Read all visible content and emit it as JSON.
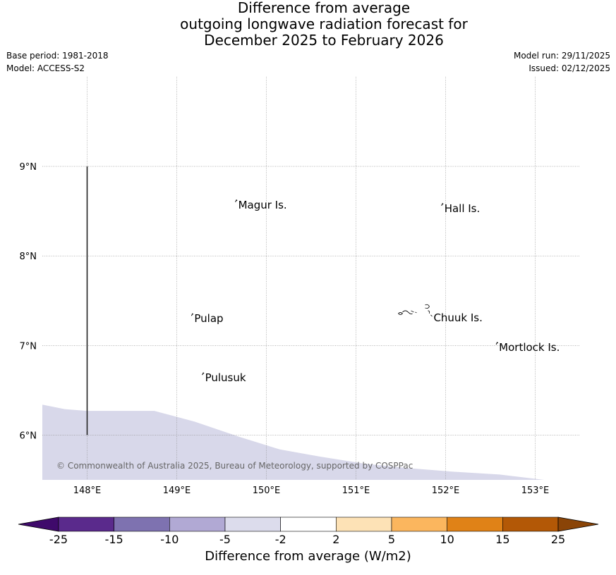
{
  "title": {
    "line1": "Difference from average",
    "line2": "outgoing longwave radiation forecast for",
    "line3": "December 2025 to February 2026"
  },
  "meta": {
    "base_period": "Base period: 1981-2018",
    "model": "Model: ACCESS-S2",
    "model_run": "Model run: 29/11/2025",
    "issued": "Issued: 02/12/2025"
  },
  "map": {
    "lon_range": [
      147.5,
      153.5
    ],
    "lat_range": [
      5.5,
      10.0
    ],
    "lon_ticks": [
      "148°E",
      "149°E",
      "150°E",
      "151°E",
      "152°E",
      "153°E"
    ],
    "lat_ticks": [
      "9°N",
      "8°N",
      "7°N",
      "6°N"
    ],
    "places": [
      {
        "name": "Magur Is.",
        "lon": 149.67,
        "lat": 8.57
      },
      {
        "name": "Hall Is.",
        "lon": 151.97,
        "lat": 8.53
      },
      {
        "name": "Pulap",
        "lon": 149.18,
        "lat": 7.3
      },
      {
        "name": "Chuuk Is.",
        "lon": 151.85,
        "lat": 7.31
      },
      {
        "name": "Mortlock Is.",
        "lon": 152.58,
        "lat": 6.98
      },
      {
        "name": "Pulusuk",
        "lon": 149.3,
        "lat": 6.64
      }
    ],
    "boundary_line": {
      "lon": 148.0,
      "lat_from": 6.0,
      "lat_to": 9.0
    },
    "shaded_region": {
      "category": "-5 to -2",
      "color": "#d8d8ea"
    },
    "copyright": "© Commonwealth of Australia 2025, Bureau of Meteorology, supported by COSPPac"
  },
  "colorbar": {
    "title": "Difference from average (W/m2)",
    "ticks": [
      "-25",
      "-15",
      "-10",
      "-5",
      "-2",
      "2",
      "5",
      "10",
      "15",
      "25"
    ],
    "colors": [
      "#5a2a8c",
      "#7e72b0",
      "#b1a9d4",
      "#dcdcec",
      "#ffffff",
      "#fde2b6",
      "#fbb65e",
      "#e08217",
      "#b35806"
    ],
    "under_color": "#3f0a6b",
    "over_color": "#8a4407"
  }
}
